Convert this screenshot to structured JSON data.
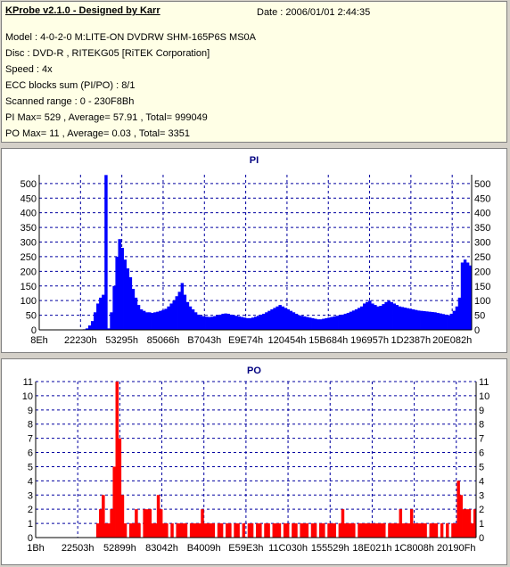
{
  "info": {
    "title": "KProbe v2.1.0 - Designed by Karr",
    "date": "Date : 2006/01/01 2:44:35",
    "lines": [
      "Model : 4-0-2-0 M:LITE-ON DVDRW SHM-165P6S MS0A",
      "Disc : DVD-R , RITEKG05 [RiTEK Corporation]",
      "Speed : 4x",
      "ECC blocks sum (PI/PO) : 8/1",
      "Scanned range : 0 - 230F8Bh",
      "PI Max= 529 , Average= 57.91 , Total= 999049",
      "PO Max= 11 , Average= 0.03 , Total= 3351"
    ]
  },
  "colors": {
    "series": "#0000ff",
    "po_series": "#ff0000",
    "grid": "#0000a0",
    "title": "#000080"
  },
  "chart_data": [
    {
      "type": "area",
      "title": "PI",
      "ylim": [
        0,
        530
      ],
      "yticks": [
        0,
        50,
        100,
        150,
        200,
        250,
        300,
        350,
        400,
        450,
        500
      ],
      "xtick_labels": [
        "8Eh",
        "22230h",
        "53295h",
        "85066h",
        "B7043h",
        "E9E74h",
        "120454h",
        "15B684h",
        "196957h",
        "1D2387h",
        "20E082h"
      ],
      "grid": true,
      "series": [
        {
          "values": [
            0,
            0,
            0,
            0,
            0,
            0,
            0,
            0,
            0,
            0,
            0,
            0,
            0,
            0,
            0,
            0,
            2,
            5,
            15,
            30,
            60,
            90,
            110,
            120,
            529,
            5,
            60,
            150,
            250,
            310,
            280,
            240,
            210,
            180,
            140,
            110,
            85,
            70,
            65,
            60,
            60,
            58,
            60,
            62,
            65,
            68,
            72,
            80,
            90,
            100,
            115,
            130,
            160,
            120,
            95,
            80,
            70,
            60,
            52,
            48,
            46,
            45,
            44,
            45,
            47,
            50,
            52,
            55,
            56,
            55,
            52,
            50,
            48,
            46,
            44,
            42,
            40,
            40,
            42,
            45,
            48,
            52,
            55,
            60,
            65,
            70,
            75,
            80,
            85,
            80,
            75,
            70,
            65,
            60,
            55,
            50,
            48,
            46,
            44,
            42,
            40,
            38,
            36,
            36,
            38,
            40,
            42,
            44,
            46,
            48,
            50,
            52,
            55,
            58,
            62,
            66,
            70,
            75,
            80,
            90,
            95,
            100,
            90,
            85,
            80,
            82,
            88,
            95,
            100,
            95,
            90,
            85,
            80,
            78,
            76,
            74,
            72,
            70,
            68,
            66,
            65,
            64,
            63,
            62,
            61,
            60,
            58,
            56,
            54,
            52,
            50,
            55,
            65,
            80,
            110,
            230,
            240,
            230,
            220
          ]
        }
      ]
    },
    {
      "type": "bar",
      "title": "PO",
      "ylim": [
        0,
        11
      ],
      "yticks": [
        0,
        1,
        2,
        3,
        4,
        5,
        6,
        7,
        8,
        9,
        10,
        11
      ],
      "xtick_labels": [
        "1Bh",
        "22503h",
        "52899h",
        "83042h",
        "B4009h",
        "E59E3h",
        "11C030h",
        "155529h",
        "18E021h",
        "1C8008h",
        "20190Fh"
      ],
      "grid": true,
      "series": [
        {
          "values": [
            0,
            0,
            0,
            0,
            0,
            0,
            0,
            0,
            0,
            0,
            0,
            0,
            0,
            0,
            0,
            0,
            0,
            0,
            0,
            0,
            0,
            0,
            1,
            2,
            3,
            1,
            1,
            2,
            5,
            11,
            7,
            3,
            1,
            0,
            1,
            1,
            2,
            1,
            0,
            2,
            2,
            2,
            1,
            1,
            3,
            2,
            1,
            1,
            0,
            1,
            0,
            1,
            1,
            1,
            1,
            0,
            1,
            1,
            1,
            1,
            2,
            1,
            1,
            1,
            1,
            0,
            1,
            1,
            0,
            1,
            1,
            0,
            1,
            1,
            0,
            1,
            0,
            1,
            1,
            0,
            1,
            1,
            0,
            1,
            1,
            0,
            1,
            1,
            1,
            0,
            1,
            1,
            0,
            1,
            1,
            0,
            1,
            1,
            1,
            0,
            1,
            1,
            0,
            1,
            1,
            0,
            1,
            1,
            1,
            0,
            1,
            2,
            1,
            1,
            1,
            1,
            0,
            1,
            1,
            1,
            1,
            1,
            1,
            1,
            1,
            1,
            1,
            0,
            1,
            1,
            1,
            1,
            2,
            1,
            1,
            1,
            2,
            1,
            1,
            1,
            1,
            1,
            0,
            1,
            1,
            1,
            0,
            1,
            0,
            1,
            0,
            1,
            1,
            4,
            3,
            2,
            2,
            2,
            1,
            2
          ]
        }
      ]
    }
  ]
}
